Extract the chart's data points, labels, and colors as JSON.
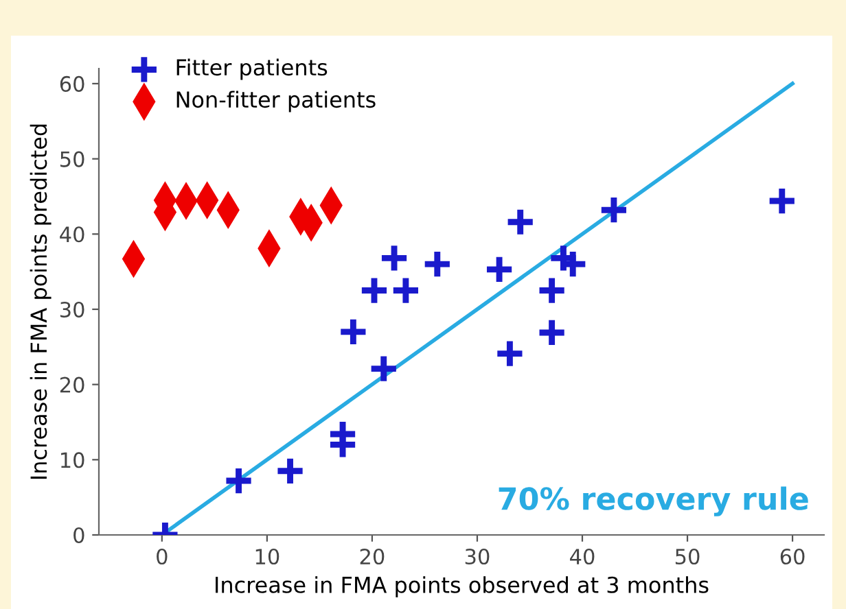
{
  "chart_data": {
    "type": "scatter",
    "xlabel": "Increase in FMA points observed at 3 months",
    "ylabel": "Increase in FMA points predicted",
    "xlim": [
      -6,
      63
    ],
    "ylim": [
      0,
      62
    ],
    "xticks": [
      0,
      10,
      20,
      30,
      40,
      50,
      60
    ],
    "yticks": [
      0,
      10,
      20,
      30,
      40,
      50,
      60
    ],
    "grid": false,
    "legend": "top left",
    "annotations": [
      "70% recovery rule"
    ],
    "series": [
      {
        "name": "Fitter patients",
        "color": "#1a1acc",
        "marker": "cross",
        "x": [
          22.1,
          20.2,
          23.2,
          26.2,
          18.2,
          21.1,
          34.1,
          43.0,
          59.0,
          32.1,
          38.2,
          39.1,
          37.1,
          37.1,
          33.1,
          17.2,
          17.2,
          12.2,
          7.3,
          0.3
        ],
        "values": [
          36.8,
          32.5,
          32.5,
          36.0,
          27.0,
          22.1,
          41.6,
          43.2,
          44.4,
          35.3,
          36.8,
          36.0,
          32.5,
          26.9,
          24.1,
          13.4,
          12.0,
          8.5,
          7.2,
          0.0
        ]
      },
      {
        "name": "Non-fitter patients",
        "color": "#ee0000",
        "marker": "diamond",
        "x": [
          -2.7,
          0.3,
          0.3,
          2.3,
          4.3,
          6.3,
          10.2,
          13.2,
          14.2,
          16.1
        ],
        "values": [
          36.7,
          44.5,
          42.9,
          44.4,
          44.5,
          43.2,
          38.1,
          42.3,
          41.5,
          43.8
        ]
      },
      {
        "type": "line",
        "color": "#29abe2",
        "line_style": "solid",
        "marker": "none",
        "x": [
          0,
          60
        ],
        "values": [
          0,
          60
        ]
      }
    ]
  }
}
